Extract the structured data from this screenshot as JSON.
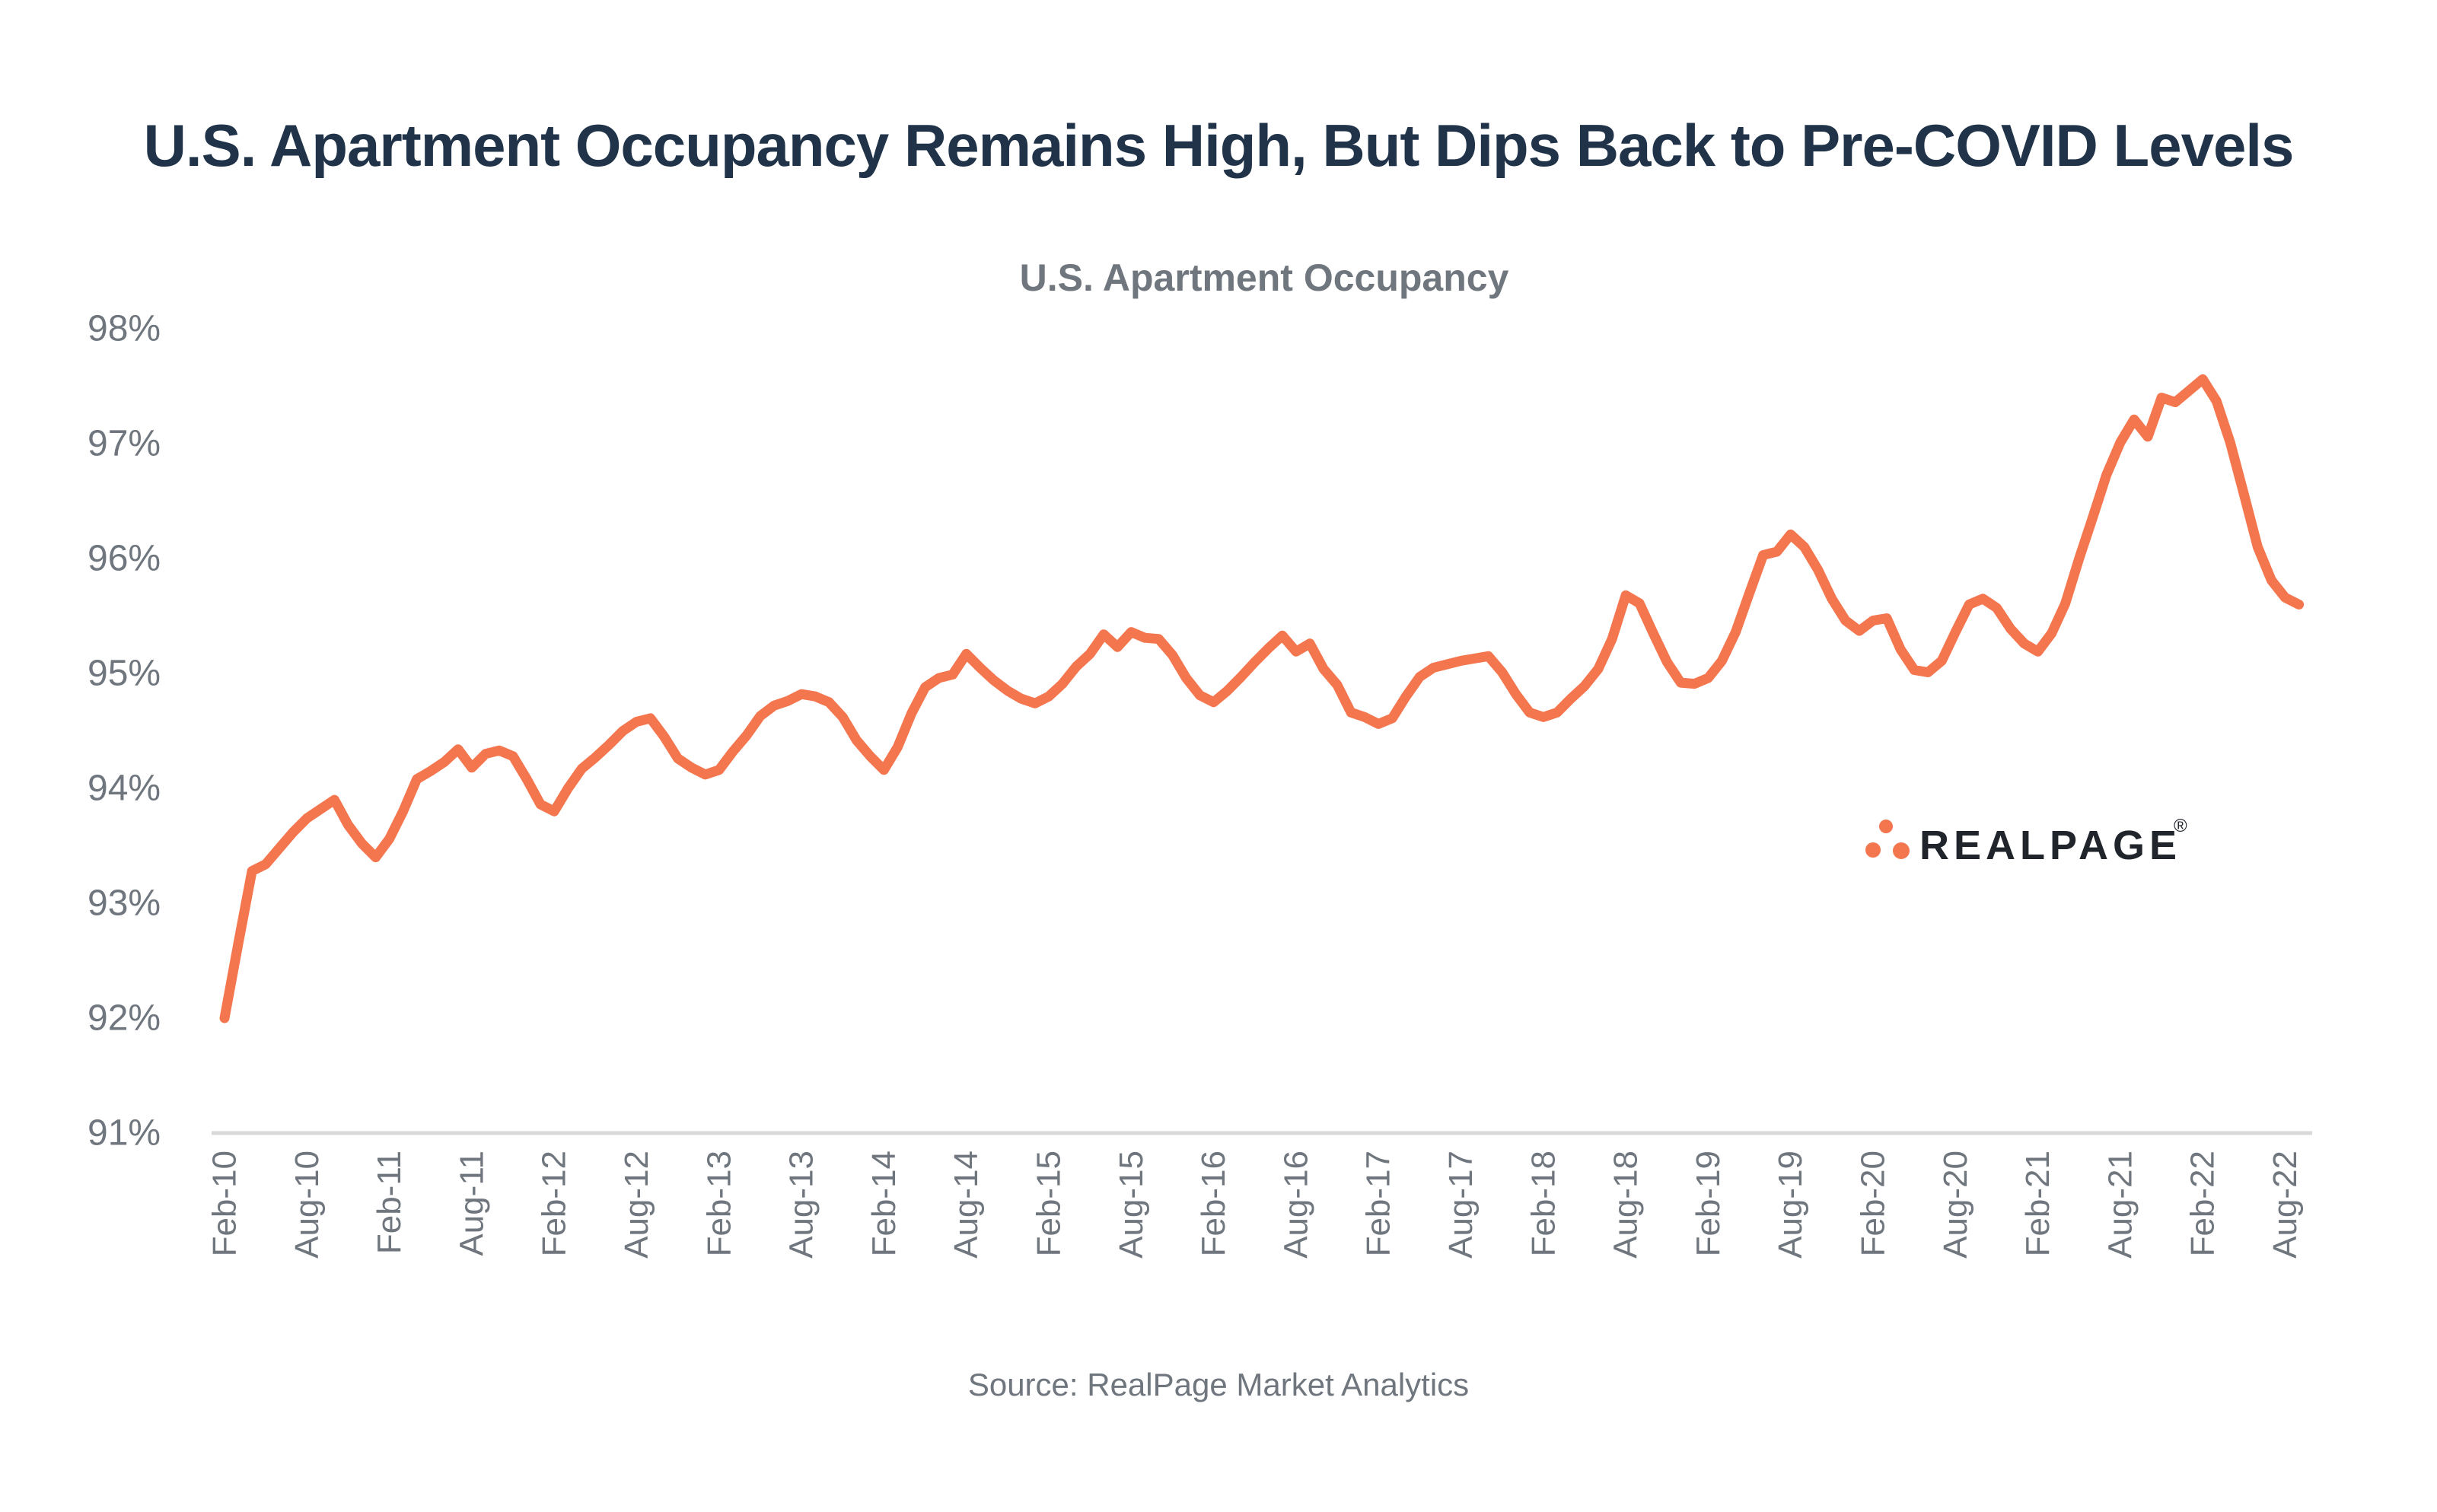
{
  "title": "U.S. Apartment Occupancy Remains High, But Dips Back to Pre-COVID Levels",
  "source": "Source: RealPage Market Analytics",
  "logo": {
    "wordmark": "REALPAGE",
    "registered": "®"
  },
  "colors": {
    "background": "#FFFFFF",
    "line": "#F4764E",
    "title": "#203349",
    "muted": "#6F767E",
    "axis_line": "#D9D9DB",
    "logo_text": "#20242B",
    "logo_dots": "#F4764E"
  },
  "chart_data": {
    "type": "line",
    "title": "U.S. Apartment Occupancy",
    "xlabel": "",
    "ylabel": "",
    "unit": "%",
    "ylim": [
      91,
      98
    ],
    "yticks": [
      98,
      97,
      96,
      95,
      94,
      93,
      92,
      91
    ],
    "ytick_suffix": "%",
    "grid": false,
    "legend": false,
    "xticks": [
      "Feb-10",
      "Aug-10",
      "Feb-11",
      "Aug-11",
      "Feb-12",
      "Aug-12",
      "Feb-13",
      "Aug-13",
      "Feb-14",
      "Aug-14",
      "Feb-15",
      "Aug-15",
      "Feb-16",
      "Aug-16",
      "Feb-17",
      "Aug-17",
      "Feb-18",
      "Aug-18",
      "Feb-19",
      "Aug-19",
      "Feb-20",
      "Aug-20",
      "Feb-21",
      "Aug-21",
      "Feb-22",
      "Aug-22"
    ],
    "series": [
      {
        "name": "U.S. Apartment Occupancy",
        "start": "Feb-2010",
        "frequency": "monthly",
        "values": [
          92.0,
          92.65,
          93.28,
          93.34,
          93.48,
          93.62,
          93.74,
          93.82,
          93.9,
          93.68,
          93.52,
          93.4,
          93.56,
          93.8,
          94.08,
          94.15,
          94.23,
          94.34,
          94.18,
          94.3,
          94.33,
          94.28,
          94.08,
          93.86,
          93.8,
          94.0,
          94.17,
          94.27,
          94.38,
          94.5,
          94.58,
          94.61,
          94.45,
          94.26,
          94.18,
          94.12,
          94.16,
          94.32,
          94.46,
          94.63,
          94.72,
          94.76,
          94.82,
          94.8,
          94.75,
          94.62,
          94.42,
          94.28,
          94.16,
          94.36,
          94.65,
          94.88,
          94.96,
          94.99,
          95.17,
          95.05,
          94.94,
          94.85,
          94.78,
          94.74,
          94.8,
          94.91,
          95.06,
          95.17,
          95.34,
          95.23,
          95.36,
          95.31,
          95.3,
          95.16,
          94.96,
          94.81,
          94.75,
          94.85,
          94.97,
          95.1,
          95.22,
          95.33,
          95.19,
          95.26,
          95.04,
          94.9,
          94.66,
          94.62,
          94.56,
          94.61,
          94.8,
          94.97,
          95.05,
          95.08,
          95.11,
          95.13,
          95.15,
          95.01,
          94.82,
          94.66,
          94.62,
          94.66,
          94.78,
          94.89,
          95.04,
          95.3,
          95.68,
          95.61,
          95.35,
          95.1,
          94.92,
          94.91,
          94.96,
          95.11,
          95.36,
          95.7,
          96.03,
          96.06,
          96.21,
          96.1,
          95.9,
          95.65,
          95.46,
          95.37,
          95.46,
          95.48,
          95.21,
          95.03,
          95.01,
          95.11,
          95.36,
          95.6,
          95.65,
          95.57,
          95.39,
          95.26,
          95.19,
          95.35,
          95.61,
          96.0,
          96.36,
          96.73,
          97.01,
          97.21,
          97.06,
          97.4,
          97.36,
          97.46,
          97.56,
          97.37,
          97.01,
          96.56,
          96.1,
          95.81,
          95.66,
          95.6
        ]
      }
    ]
  }
}
